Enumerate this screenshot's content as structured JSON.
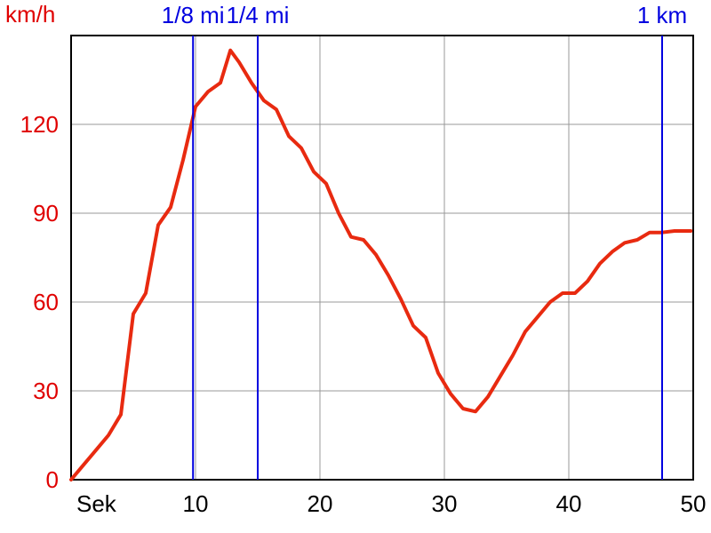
{
  "chart_data": {
    "type": "line",
    "title": "",
    "xlabel": "Sek",
    "ylabel": "km/h",
    "xlim": [
      0,
      50
    ],
    "ylim": [
      0,
      150
    ],
    "x_ticks": [
      10,
      20,
      30,
      40,
      50
    ],
    "y_ticks": [
      0,
      30,
      60,
      90,
      120
    ],
    "grid": true,
    "colors": {
      "line": "#e82a10",
      "markers": "#0000e0",
      "grid": "#999999"
    },
    "series": [
      {
        "values": [
          [
            0,
            0
          ],
          [
            1,
            5
          ],
          [
            2,
            10
          ],
          [
            3,
            15
          ],
          [
            4,
            22
          ],
          [
            5,
            56
          ],
          [
            6,
            63
          ],
          [
            7,
            86
          ],
          [
            8,
            92
          ],
          [
            9,
            108
          ],
          [
            10,
            126
          ],
          [
            11,
            131
          ],
          [
            12,
            134
          ],
          [
            12.8,
            145
          ],
          [
            13.5,
            141
          ],
          [
            14.5,
            134
          ],
          [
            15.5,
            128
          ],
          [
            16.5,
            125
          ],
          [
            17.5,
            116
          ],
          [
            18.5,
            112
          ],
          [
            19.5,
            104
          ],
          [
            20.5,
            100
          ],
          [
            21.5,
            90
          ],
          [
            22.5,
            82
          ],
          [
            23.5,
            81
          ],
          [
            24.5,
            76
          ],
          [
            25.5,
            69
          ],
          [
            26.5,
            61
          ],
          [
            27.5,
            52
          ],
          [
            28.5,
            48
          ],
          [
            29.5,
            36
          ],
          [
            30.5,
            29
          ],
          [
            31.5,
            24
          ],
          [
            32.5,
            23
          ],
          [
            33.5,
            28
          ],
          [
            34.5,
            35
          ],
          [
            35.5,
            42
          ],
          [
            36.5,
            50
          ],
          [
            37.5,
            55
          ],
          [
            38.5,
            60
          ],
          [
            39.5,
            63
          ],
          [
            40.5,
            63
          ],
          [
            41.5,
            67
          ],
          [
            42.5,
            73
          ],
          [
            43.5,
            77
          ],
          [
            44.5,
            80
          ],
          [
            45.5,
            81
          ],
          [
            46.5,
            83.5
          ],
          [
            47.5,
            83.5
          ],
          [
            48.5,
            84
          ],
          [
            49.8,
            84
          ]
        ]
      }
    ],
    "markers": [
      {
        "label": "1/8 mi",
        "x": 9.8
      },
      {
        "label": "1/4 mi",
        "x": 15
      },
      {
        "label": "1 km",
        "x": 47.5
      }
    ]
  }
}
